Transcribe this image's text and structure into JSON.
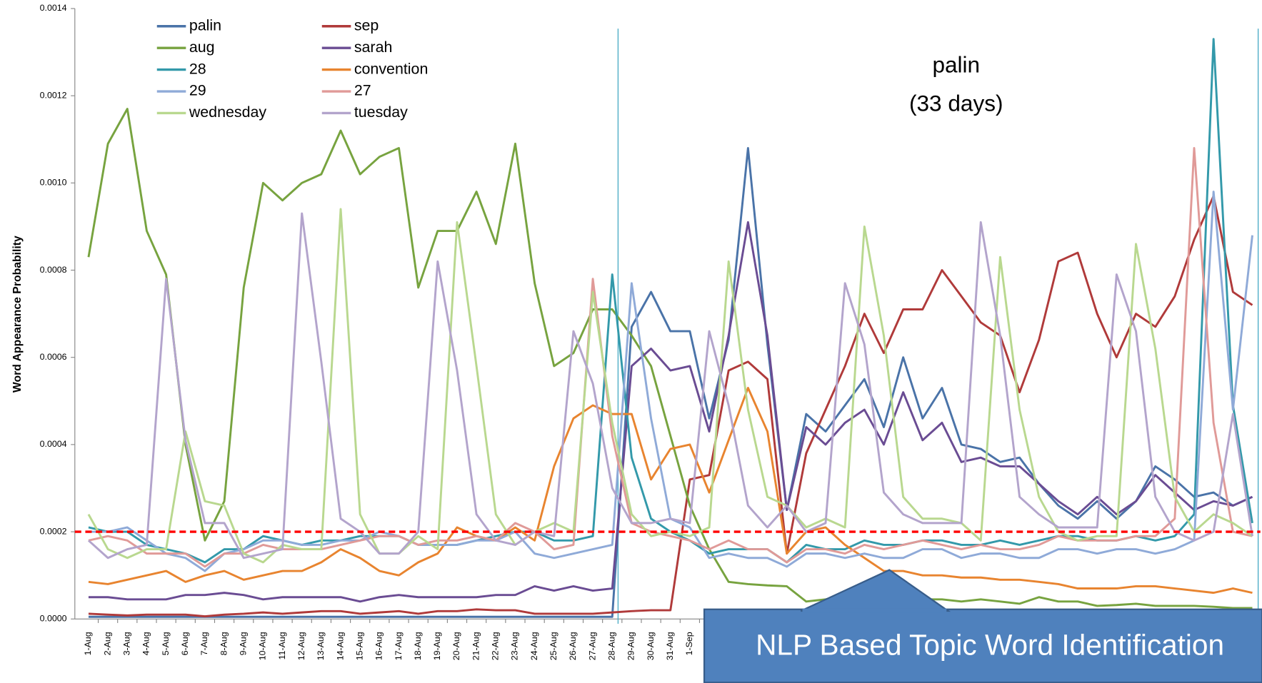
{
  "chart_data": {
    "type": "line",
    "y_label": "Word Appearance Probability",
    "annotation": "palin",
    "annotation_sub": "(33 days)",
    "callout": "NLP Based Topic Word Identification",
    "threshold": 0.0002,
    "threshold_color": "#ff0000",
    "ylim": [
      0,
      0.0014
    ],
    "yticks": [
      {
        "value": 0,
        "label": "0.0000"
      },
      0.0002,
      0.0004,
      0.0006,
      0.0008,
      {
        "value": 0.001,
        "label": "0.0010"
      },
      0.0012,
      0.0014
    ],
    "categories": [
      "1-Aug",
      "2-Aug",
      "3-Aug",
      "4-Aug",
      "5-Aug",
      "6-Aug",
      "7-Aug",
      "8-Aug",
      "9-Aug",
      "10-Aug",
      "11-Aug",
      "12-Aug",
      "13-Aug",
      "14-Aug",
      "15-Aug",
      "16-Aug",
      "17-Aug",
      "18-Aug",
      "19-Aug",
      "20-Aug",
      "21-Aug",
      "22-Aug",
      "23-Aug",
      "24-Aug",
      "25-Aug",
      "26-Aug",
      "27-Aug",
      "28-Aug",
      "29-Aug",
      "30-Aug",
      "31-Aug",
      "1-Sep",
      null,
      null,
      null,
      null,
      null,
      null,
      null,
      null,
      null,
      null,
      null,
      null,
      null,
      null,
      null,
      null,
      null,
      null,
      null,
      null,
      null,
      null,
      null,
      null,
      null,
      null,
      null,
      null,
      null
    ],
    "series": [
      {
        "name": "palin",
        "color": "#4a73a8",
        "values": [
          5e-06,
          5e-06,
          5e-06,
          5e-06,
          5e-06,
          5e-06,
          5e-06,
          5e-06,
          5e-06,
          5e-06,
          5e-06,
          5e-06,
          5e-06,
          5e-06,
          5e-06,
          5e-06,
          5e-06,
          5e-06,
          5e-06,
          5e-06,
          5e-06,
          5e-06,
          5e-06,
          5e-06,
          5e-06,
          5e-06,
          5e-06,
          5e-06,
          0.00067,
          0.00075,
          0.00066,
          0.00066,
          0.00046,
          0.00064,
          0.00108,
          0.00063,
          0.00025,
          0.00047,
          0.00043,
          0.00049,
          0.00055,
          0.00044,
          0.0006,
          0.00046,
          0.00053,
          0.0004,
          0.00039,
          0.00036,
          0.00037,
          0.00031,
          0.00026,
          0.00023,
          0.00027,
          0.00023,
          0.00027,
          0.00035,
          0.00032,
          0.00028,
          0.00029,
          0.00026,
          0.00028
        ]
      },
      {
        "name": "sep",
        "color": "#b03a3a",
        "values": [
          1.2e-05,
          1e-05,
          8e-06,
          1e-05,
          1e-05,
          1e-05,
          6e-06,
          1e-05,
          1.2e-05,
          1.5e-05,
          1.2e-05,
          1.5e-05,
          1.8e-05,
          1.8e-05,
          1.2e-05,
          1.5e-05,
          1.8e-05,
          1.2e-05,
          1.8e-05,
          1.8e-05,
          2.2e-05,
          2e-05,
          2e-05,
          1.2e-05,
          1.2e-05,
          1.2e-05,
          1.2e-05,
          1.5e-05,
          1.8e-05,
          2e-05,
          2e-05,
          0.00032,
          0.00033,
          0.00057,
          0.00059,
          0.00055,
          0.00015,
          0.00038,
          0.00048,
          0.00058,
          0.0007,
          0.00061,
          0.00071,
          0.00071,
          0.0008,
          0.00074,
          0.00068,
          0.00065,
          0.00052,
          0.00064,
          0.00082,
          0.00084,
          0.0007,
          0.0006,
          0.0007,
          0.00067,
          0.00074,
          0.00087,
          0.00097,
          0.00075,
          0.00072
        ]
      },
      {
        "name": "aug",
        "color": "#77a33f",
        "values": [
          0.00083,
          0.00109,
          0.00117,
          0.00089,
          0.00079,
          0.0004,
          0.00018,
          0.00027,
          0.00076,
          0.001,
          0.00096,
          0.001,
          0.00102,
          0.00112,
          0.00102,
          0.00106,
          0.00108,
          0.00076,
          0.00089,
          0.00089,
          0.00098,
          0.00086,
          0.00109,
          0.00077,
          0.00058,
          0.00061,
          0.00071,
          0.00071,
          0.00065,
          0.00058,
          0.00042,
          0.00026,
          0.00016,
          8.5e-05,
          8e-05,
          7.7e-05,
          7.5e-05,
          4e-05,
          4.5e-05,
          5.5e-05,
          5e-05,
          5e-05,
          4.8e-05,
          4.5e-05,
          4.5e-05,
          4e-05,
          4.5e-05,
          4e-05,
          3.5e-05,
          5e-05,
          4e-05,
          4e-05,
          3e-05,
          3.2e-05,
          3.5e-05,
          3e-05,
          3e-05,
          3e-05,
          2.8e-05,
          2.5e-05,
          2.5e-05
        ]
      },
      {
        "name": "sarah",
        "color": "#6a4c93",
        "values": [
          5e-05,
          5e-05,
          4.5e-05,
          4.5e-05,
          4.5e-05,
          5.5e-05,
          5.5e-05,
          6e-05,
          5.5e-05,
          4.5e-05,
          5e-05,
          5e-05,
          5e-05,
          5e-05,
          4e-05,
          5e-05,
          5.5e-05,
          5e-05,
          5e-05,
          5e-05,
          5e-05,
          5.5e-05,
          5.5e-05,
          7.5e-05,
          6.5e-05,
          7.5e-05,
          6.5e-05,
          7e-05,
          0.00058,
          0.00062,
          0.00057,
          0.00058,
          0.00043,
          0.00065,
          0.00091,
          0.00065,
          0.00025,
          0.00044,
          0.0004,
          0.00045,
          0.00048,
          0.0004,
          0.00052,
          0.00041,
          0.00045,
          0.00036,
          0.00037,
          0.00035,
          0.00035,
          0.00031,
          0.00027,
          0.00024,
          0.00028,
          0.00024,
          0.00027,
          0.00033,
          0.00029,
          0.00025,
          0.00027,
          0.00026,
          0.00028
        ]
      },
      {
        "name": "28",
        "color": "#3399aa",
        "values": [
          0.00021,
          0.0002,
          0.0002,
          0.00017,
          0.00016,
          0.00015,
          0.00013,
          0.00016,
          0.00016,
          0.00019,
          0.00018,
          0.00017,
          0.00018,
          0.00018,
          0.00019,
          0.00019,
          0.00019,
          0.00017,
          0.00017,
          0.00017,
          0.00018,
          0.00019,
          0.0002,
          0.0002,
          0.00018,
          0.00018,
          0.00019,
          0.00079,
          0.00037,
          0.00023,
          0.0002,
          0.00018,
          0.00015,
          0.00016,
          0.00016,
          0.00016,
          0.00013,
          0.00017,
          0.00016,
          0.00016,
          0.00018,
          0.00017,
          0.00017,
          0.00018,
          0.00018,
          0.00017,
          0.00017,
          0.00018,
          0.00017,
          0.00018,
          0.00019,
          0.00019,
          0.00018,
          0.00018,
          0.00019,
          0.00018,
          0.00019,
          0.00024,
          0.00133,
          0.00049,
          0.00022
        ]
      },
      {
        "name": "convention",
        "color": "#e8842f",
        "values": [
          8.5e-05,
          8e-05,
          9e-05,
          0.0001,
          0.00011,
          8.5e-05,
          0.0001,
          0.00011,
          9e-05,
          0.0001,
          0.00011,
          0.00011,
          0.00013,
          0.00016,
          0.00014,
          0.00011,
          0.0001,
          0.00013,
          0.00015,
          0.00021,
          0.00019,
          0.00018,
          0.00021,
          0.00018,
          0.00035,
          0.00046,
          0.00049,
          0.00047,
          0.00047,
          0.00032,
          0.00039,
          0.0004,
          0.00029,
          0.00041,
          0.00053,
          0.00043,
          0.00015,
          0.0002,
          0.00021,
          0.00017,
          0.00014,
          0.00011,
          0.00011,
          0.0001,
          0.0001,
          9.5e-05,
          9.5e-05,
          9e-05,
          9e-05,
          8.5e-05,
          8e-05,
          7e-05,
          7e-05,
          7e-05,
          7.5e-05,
          7.5e-05,
          7e-05,
          6.5e-05,
          6e-05,
          7e-05,
          6e-05
        ]
      },
      {
        "name": "29",
        "color": "#8faad8",
        "values": [
          0.0002,
          0.0002,
          0.00021,
          0.00018,
          0.00015,
          0.00014,
          0.00011,
          0.00015,
          0.00016,
          0.00018,
          0.00018,
          0.00017,
          0.00017,
          0.00018,
          0.00018,
          0.0002,
          0.00019,
          0.00017,
          0.00017,
          0.00017,
          0.00018,
          0.00018,
          0.0002,
          0.00015,
          0.00014,
          0.00015,
          0.00016,
          0.00017,
          0.00077,
          0.00046,
          0.00023,
          0.00021,
          0.00014,
          0.00015,
          0.00014,
          0.00014,
          0.00012,
          0.00015,
          0.00015,
          0.00014,
          0.00015,
          0.00014,
          0.00014,
          0.00016,
          0.00016,
          0.00014,
          0.00015,
          0.00015,
          0.00014,
          0.00014,
          0.00016,
          0.00016,
          0.00015,
          0.00016,
          0.00016,
          0.00015,
          0.00016,
          0.00018,
          0.00098,
          0.00048,
          0.00088
        ]
      },
      {
        "name": "27",
        "color": "#e09a98",
        "values": [
          0.00018,
          0.00019,
          0.00018,
          0.00015,
          0.00015,
          0.00015,
          0.00012,
          0.00015,
          0.00015,
          0.00017,
          0.00016,
          0.00016,
          0.00016,
          0.00017,
          0.00018,
          0.00019,
          0.00019,
          0.00017,
          0.00018,
          0.00018,
          0.00019,
          0.00018,
          0.00022,
          0.0002,
          0.00016,
          0.00017,
          0.00078,
          0.00042,
          0.00022,
          0.0002,
          0.00019,
          0.00018,
          0.00016,
          0.00018,
          0.00016,
          0.00016,
          0.00013,
          0.00016,
          0.00016,
          0.00015,
          0.00017,
          0.00016,
          0.00017,
          0.00018,
          0.00017,
          0.00016,
          0.00017,
          0.00016,
          0.00016,
          0.00017,
          0.00019,
          0.00018,
          0.00018,
          0.00018,
          0.00019,
          0.00019,
          0.00023,
          0.00108,
          0.00045,
          0.0002,
          0.00019
        ]
      },
      {
        "name": "wednesday",
        "color": "#b9d88f",
        "values": [
          0.00024,
          0.00016,
          0.00014,
          0.00016,
          0.00016,
          0.00043,
          0.00027,
          0.00026,
          0.00015,
          0.00013,
          0.00017,
          0.00016,
          0.00016,
          0.00094,
          0.00024,
          0.00015,
          0.00015,
          0.00019,
          0.00016,
          0.00091,
          0.00058,
          0.00024,
          0.00017,
          0.0002,
          0.00022,
          0.0002,
          0.00075,
          0.00045,
          0.00024,
          0.00019,
          0.0002,
          0.00019,
          0.00021,
          0.00082,
          0.00048,
          0.00028,
          0.00026,
          0.00021,
          0.00023,
          0.00021,
          0.0009,
          0.00065,
          0.00028,
          0.00023,
          0.00023,
          0.00022,
          0.00018,
          0.00083,
          0.00048,
          0.00028,
          0.0002,
          0.00018,
          0.00019,
          0.00019,
          0.00086,
          0.00062,
          0.00028,
          0.0002,
          0.00024,
          0.00022,
          0.00019
        ]
      },
      {
        "name": "tuesday",
        "color": "#b3a4cc",
        "values": [
          0.00018,
          0.00014,
          0.00016,
          0.00017,
          0.00078,
          0.00041,
          0.00022,
          0.00022,
          0.00014,
          0.00015,
          0.00016,
          0.00093,
          0.00059,
          0.00023,
          0.0002,
          0.00015,
          0.00015,
          0.0002,
          0.00082,
          0.00057,
          0.00024,
          0.00018,
          0.00017,
          0.0002,
          0.00019,
          0.00066,
          0.00054,
          0.0003,
          0.00022,
          0.00022,
          0.00023,
          0.00022,
          0.00066,
          0.00049,
          0.00026,
          0.00021,
          0.00026,
          0.0002,
          0.00022,
          0.00077,
          0.00063,
          0.00029,
          0.00024,
          0.00022,
          0.00022,
          0.00022,
          0.00091,
          0.00065,
          0.00028,
          0.00024,
          0.00021,
          0.00021,
          0.00021,
          0.00079,
          0.00066,
          0.00028,
          0.0002,
          0.00018,
          0.0002,
          0.00047,
          0.00019
        ]
      }
    ]
  }
}
